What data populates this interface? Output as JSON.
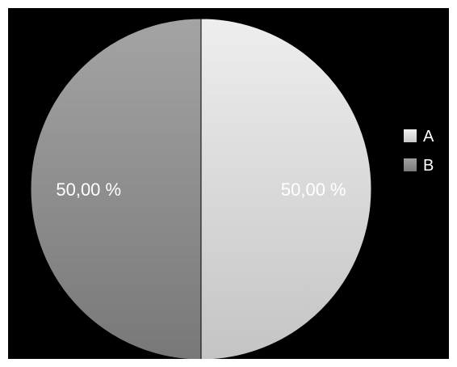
{
  "chart_data": {
    "type": "pie",
    "title": "",
    "categories": [
      "A",
      "B"
    ],
    "values": [
      50,
      50
    ],
    "data_labels": [
      "50,00 %",
      "50,00 %"
    ],
    "colors": [
      "#d4d4d4",
      "#8c8c8c"
    ],
    "legend": {
      "position": "right",
      "entries": [
        "A",
        "B"
      ]
    },
    "background": "#000000"
  }
}
